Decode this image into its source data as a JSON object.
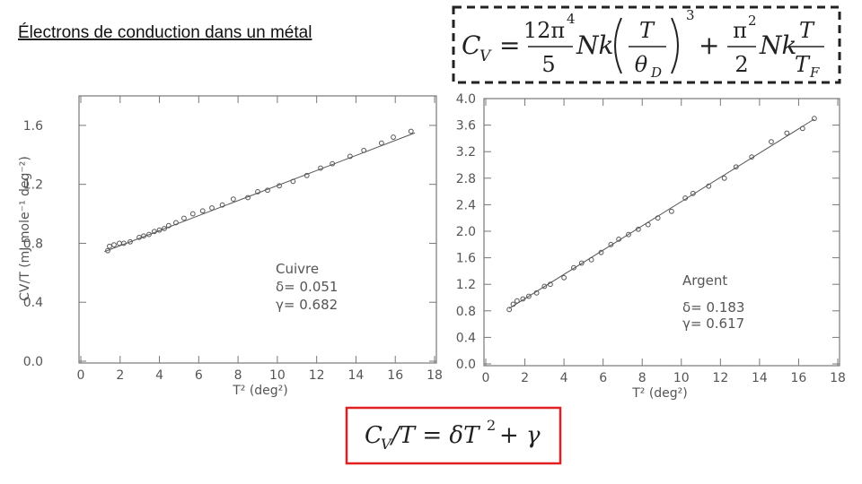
{
  "slide": {
    "title": "Électrons de conduction dans un métal",
    "formula_top": {
      "c": "C",
      "v": "V",
      "eq": "=",
      "num1": "12π",
      "num1_exp": "4",
      "den1": "5",
      "nk1": "Nk",
      "num2": "T",
      "den2": "θ",
      "den2_sub": "D",
      "exp": "3",
      "plus": "+",
      "num3": "π",
      "num3_exp": "2",
      "den3": "2",
      "nk2": "Nk",
      "num4": "T",
      "den4": "T",
      "den4_sub": "F"
    },
    "formula_bottom": {
      "c": "C",
      "v": "V",
      "mid": "/T = δT",
      "exp": "2",
      "tail": "+ γ"
    }
  },
  "chart_data": [
    {
      "type": "scatter",
      "xlabel": "T² (deg²)",
      "ylabel": "CV/T (mJ mole⁻¹ deg⁻²)",
      "annotations": [
        "Cuivre",
        "δ= 0.051",
        "γ= 0.682"
      ],
      "xlim": [
        0,
        18
      ],
      "xticks": [
        0,
        2,
        4,
        6,
        8,
        10,
        12,
        14,
        16,
        18
      ],
      "ylim": [
        0,
        1.8
      ],
      "yticks": [
        {
          "value": 0,
          "label": "0.0"
        },
        0.4,
        0.8,
        1.2,
        1.6
      ],
      "series": [
        {
          "style": "markers",
          "color": "#555555",
          "x": [
            1.37,
            1.46,
            1.69,
            1.96,
            2.19,
            2.51,
            2.97,
            3.2,
            3.47,
            3.74,
            4.0,
            4.25,
            4.47,
            4.84,
            5.25,
            5.7,
            6.2,
            6.67,
            7.2,
            7.76,
            8.5,
            9.0,
            9.5,
            10.1,
            10.8,
            11.5,
            12.2,
            12.8,
            13.7,
            14.4,
            15.3,
            15.9,
            16.8
          ],
          "values": [
            0.75,
            0.78,
            0.79,
            0.8,
            0.8,
            0.81,
            0.84,
            0.85,
            0.86,
            0.88,
            0.89,
            0.9,
            0.92,
            0.94,
            0.97,
            1.0,
            1.02,
            1.04,
            1.06,
            1.1,
            1.11,
            1.15,
            1.16,
            1.19,
            1.22,
            1.26,
            1.31,
            1.34,
            1.39,
            1.43,
            1.48,
            1.52,
            1.56
          ]
        },
        {
          "style": "line",
          "color": "#555555",
          "x": [
            1.2,
            17
          ],
          "values": [
            0.743,
            1.549
          ]
        }
      ]
    },
    {
      "type": "scatter",
      "xlabel": "T² (deg²)",
      "annotations": [
        "Argent",
        "δ= 0.183",
        "γ= 0.617"
      ],
      "xlim": [
        0,
        18
      ],
      "xticks": [
        0,
        2,
        4,
        6,
        8,
        10,
        12,
        14,
        16,
        18
      ],
      "ylim": [
        0,
        4
      ],
      "yticks": [
        {
          "value": 0,
          "label": "0.0"
        },
        0.4,
        0.8,
        1.2,
        1.6,
        {
          "value": 2,
          "label": "2.0"
        },
        2.4,
        2.8,
        3.2,
        3.6,
        {
          "value": 4,
          "label": "4.0"
        }
      ],
      "series": [
        {
          "style": "markers",
          "color": "#555555",
          "x": [
            1.2,
            1.4,
            1.6,
            1.9,
            2.2,
            2.6,
            3.0,
            3.3,
            4.0,
            4.5,
            4.9,
            5.4,
            5.9,
            6.4,
            6.8,
            7.3,
            7.8,
            8.3,
            8.8,
            9.5,
            10.2,
            10.6,
            11.4,
            12.2,
            12.8,
            13.6,
            14.6,
            15.4,
            16.2,
            16.8
          ],
          "values": [
            0.82,
            0.9,
            0.95,
            0.98,
            1.02,
            1.07,
            1.17,
            1.2,
            1.3,
            1.45,
            1.52,
            1.57,
            1.68,
            1.8,
            1.88,
            1.95,
            2.03,
            2.1,
            2.2,
            2.3,
            2.5,
            2.57,
            2.68,
            2.8,
            2.97,
            3.12,
            3.35,
            3.48,
            3.55,
            3.7
          ]
        },
        {
          "style": "line",
          "color": "#555555",
          "x": [
            1.2,
            16.8
          ],
          "values": [
            0.837,
            3.691
          ]
        }
      ]
    }
  ]
}
